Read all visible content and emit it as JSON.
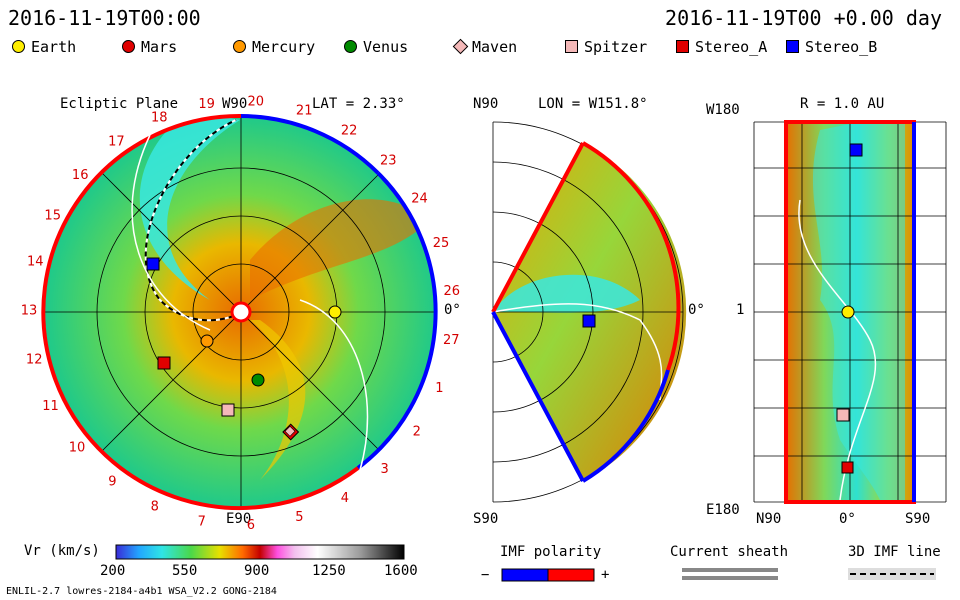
{
  "header": {
    "left_datetime": "2016-11-19T00:00",
    "right_datetime": "2016-11-19T00 +0.00 day"
  },
  "legend": [
    {
      "name": "Earth",
      "shape": "circle",
      "color": "#ffee00"
    },
    {
      "name": "Mars",
      "shape": "circle",
      "color": "#e00000"
    },
    {
      "name": "Mercury",
      "shape": "circle",
      "color": "#ff9900"
    },
    {
      "name": "Venus",
      "shape": "circle",
      "color": "#008a00"
    },
    {
      "name": "Maven",
      "shape": "diamond",
      "color": "#f4b8b8"
    },
    {
      "name": "Spitzer",
      "shape": "square",
      "color": "#f4b8b8"
    },
    {
      "name": "Stereo_A",
      "shape": "square",
      "color": "#e00000"
    },
    {
      "name": "Stereo_B",
      "shape": "square",
      "color": "#0000ff"
    }
  ],
  "ecliptic": {
    "title": "Ecliptic Plane",
    "top_label": "W90",
    "bottom_label": "E90",
    "lat_label": "LAT = 2.33°",
    "zero_label": "0°",
    "rotation_numbers": [
      "20",
      "21",
      "22",
      "23",
      "24",
      "25",
      "26",
      "27",
      "1",
      "2",
      "3",
      "4",
      "5",
      "6",
      "7",
      "8",
      "9",
      "10",
      "11",
      "12",
      "13",
      "14",
      "15",
      "16",
      "17",
      "18",
      "19"
    ]
  },
  "meridional": {
    "top_label": "N90",
    "bottom_label": "S90",
    "lon_label": "LON = W151.8°",
    "zero_label": "0°"
  },
  "radial": {
    "r_label": "R = 1.0 AU",
    "top_left": "W180",
    "bottom_left": "E180",
    "mid_left": "1",
    "x_labels": [
      "N90",
      "0°",
      "S90"
    ]
  },
  "colorbar": {
    "label": "Vr (km/s)",
    "ticks": [
      "200",
      "550",
      "900",
      "1250",
      "1600"
    ]
  },
  "imf": {
    "title": "IMF polarity",
    "minus": "−",
    "plus": "+",
    "neg_color": "#0000ff",
    "pos_color": "#ff0000"
  },
  "current_sheath": {
    "title": "Current sheath"
  },
  "imf_line": {
    "title": "3D IMF line"
  },
  "footer": {
    "left": "ENLIL-2.7 lowres-2184-a4b1 WSA_V2.2 GONG-2184"
  },
  "chart_data": {
    "type": "heatmap",
    "quantity": "Vr (km/s)",
    "colorbar_range": [
      200,
      1600
    ],
    "bodies": [
      {
        "name": "Earth",
        "panel": "ecliptic"
      },
      {
        "name": "Mercury",
        "panel": "ecliptic"
      },
      {
        "name": "Venus",
        "panel": "ecliptic"
      },
      {
        "name": "Mars",
        "panel": "ecliptic"
      },
      {
        "name": "Maven",
        "panel": "ecliptic"
      },
      {
        "name": "Spitzer",
        "panel": "ecliptic"
      },
      {
        "name": "Stereo_A",
        "panel": "ecliptic"
      },
      {
        "name": "Stereo_B",
        "panel": "ecliptic"
      }
    ]
  }
}
